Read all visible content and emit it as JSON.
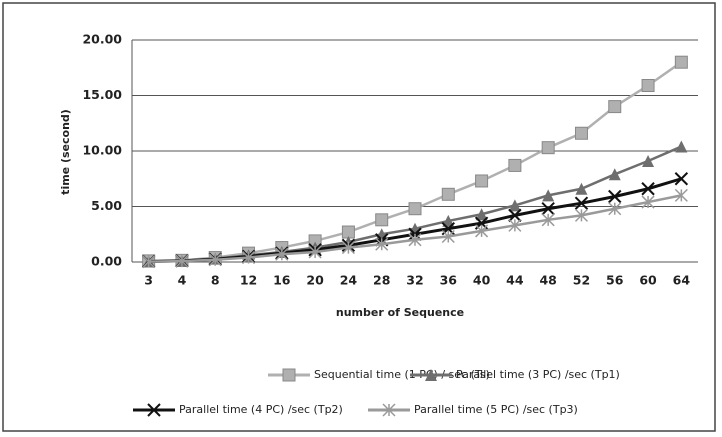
{
  "chart_data": {
    "type": "line",
    "categories": [
      "3",
      "4",
      "8",
      "12",
      "16",
      "20",
      "24",
      "28",
      "32",
      "36",
      "40",
      "44",
      "48",
      "52",
      "56",
      "60",
      "64"
    ],
    "x_label": "number of Sequence",
    "y_label": "time (second)",
    "ylim": [
      0,
      20
    ],
    "yticks": [
      {
        "value": 0,
        "label": "0.00"
      },
      {
        "value": 5,
        "label": "5.00"
      },
      {
        "value": 10,
        "label": "10.00"
      },
      {
        "value": 15,
        "label": "15.00"
      },
      {
        "value": 20,
        "label": "20.00"
      }
    ],
    "grid": true,
    "series": [
      {
        "name": "Sequential time  (1 PC) / sec (Ts)",
        "color": "#b0b0b0",
        "marker": "square",
        "values": [
          0.1,
          0.15,
          0.4,
          0.8,
          1.3,
          1.9,
          2.7,
          3.8,
          4.8,
          6.1,
          7.3,
          8.7,
          10.3,
          11.6,
          14.0,
          15.9,
          18.0
        ]
      },
      {
        "name": "Parallel time (3 PC) /sec (Tp1)",
        "color": "#6e6e6e",
        "marker": "triangle",
        "values": [
          0.05,
          0.1,
          0.3,
          0.6,
          0.9,
          1.3,
          1.8,
          2.5,
          3.0,
          3.7,
          4.3,
          5.1,
          6.0,
          6.6,
          7.9,
          9.1,
          10.4
        ]
      },
      {
        "name": "Parallel time (4 PC) /sec (Tp2)",
        "color": "#111111",
        "marker": "x",
        "values": [
          0.05,
          0.1,
          0.25,
          0.5,
          0.8,
          1.1,
          1.5,
          2.0,
          2.5,
          3.0,
          3.5,
          4.2,
          4.8,
          5.3,
          5.9,
          6.6,
          7.5
        ]
      },
      {
        "name": "Parallel time (5 PC) /sec (Tp3)",
        "color": "#9a9a9a",
        "marker": "star",
        "values": [
          0.03,
          0.08,
          0.2,
          0.4,
          0.7,
          0.9,
          1.3,
          1.6,
          2.0,
          2.3,
          2.8,
          3.3,
          3.8,
          4.2,
          4.8,
          5.4,
          6.0
        ]
      }
    ]
  }
}
